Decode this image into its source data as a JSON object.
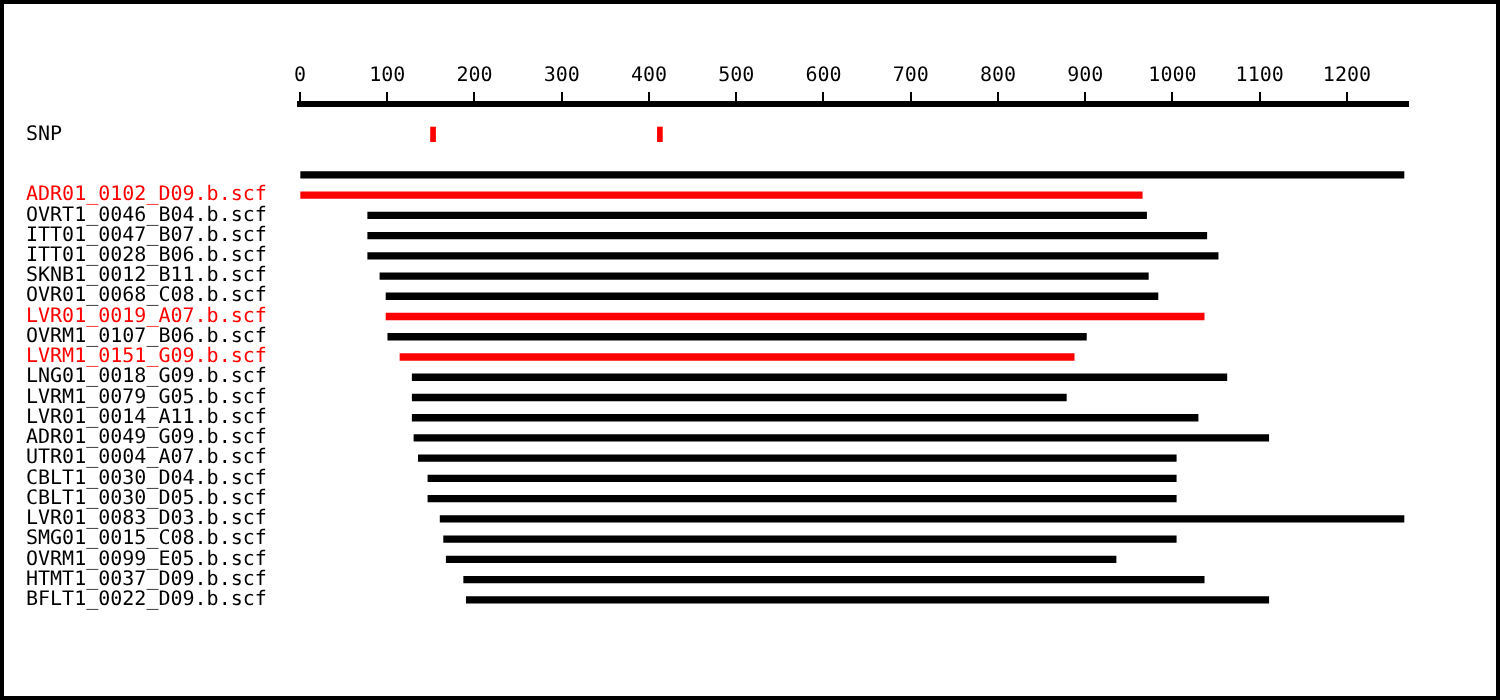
{
  "chart_data": {
    "type": "bar",
    "orientation": "horizontal",
    "xlim": [
      0,
      1270
    ],
    "xticks": [
      0,
      100,
      200,
      300,
      400,
      500,
      600,
      700,
      800,
      900,
      1000,
      1100,
      1200
    ],
    "categories": [
      null,
      "SNP",
      null,
      null,
      "ADR01_0102_D09.b.scf",
      "OVRT1_0046_B04.b.scf",
      "ITT01_0047_B07.b.scf",
      "ITT01_0028_B06.b.scf",
      "SKNB1_0012_B11.b.scf",
      "OVR01_0068_C08.b.scf",
      "LVR01_0019_A07.b.scf",
      "OVRM1_0107_B06.b.scf",
      "LVRM1_0151_G09.b.scf",
      "LNG01_0018_G09.b.scf",
      "LVRM1_0079_G05.b.scf",
      "LVR01_0014_A11.b.scf",
      "ADR01_0049_G09.b.scf",
      "UTR01_0004_A07.b.scf",
      "CBLT1_0030_D04.b.scf",
      "CBLT1_0030_D05.b.scf",
      "LVR01_0083_D03.b.scf",
      "SMG01_0015_C08.b.scf",
      "OVRM1_0099_E05.b.scf",
      "HTMT1_0037_D09.b.scf",
      "BFLT1_0022_D09.b.scf"
    ],
    "series": [
      {
        "base": [
          null,
          null,
          null,
          0,
          0,
          78,
          78,
          78,
          92,
          99,
          99,
          101,
          115,
          129,
          129,
          129,
          131,
          136,
          147,
          147,
          161,
          165,
          168,
          188,
          191
        ],
        "values": [
          null,
          null,
          null,
          1265,
          965,
          892,
          961,
          974,
          880,
          884,
          937,
          800,
          772,
          933,
          749,
          900,
          979,
          868,
          857,
          857,
          1104,
          839,
          767,
          848,
          919
        ],
        "colors": [
          "#000000",
          "#000000",
          "#000000",
          "#000000",
          "#ff0000",
          "#000000",
          "#000000",
          "#000000",
          "#000000",
          "#000000",
          "#ff0000",
          "#000000",
          "#ff0000",
          "#000000",
          "#000000",
          "#000000",
          "#000000",
          "#000000",
          "#000000",
          "#000000",
          "#000000",
          "#000000",
          "#000000",
          "#000000",
          "#000000"
        ]
      },
      {
        "color": "#ff0000",
        "base": [
          null,
          150,
          null,
          null,
          null,
          null,
          null,
          null,
          null,
          null,
          null,
          null,
          null,
          null,
          null,
          null,
          null,
          null,
          null,
          null,
          null,
          null,
          null,
          null,
          null
        ],
        "values": [
          null,
          5,
          null,
          null,
          null,
          null,
          null,
          null,
          null,
          null,
          null,
          null,
          null,
          null,
          null,
          null,
          null,
          null,
          null,
          null,
          null,
          null,
          null,
          null,
          null
        ]
      },
      {
        "color": "#ff0000",
        "base": [
          null,
          410,
          null,
          null,
          null,
          null,
          null,
          null,
          null,
          null,
          null,
          null,
          null,
          null,
          null,
          null,
          null,
          null,
          null,
          null,
          null,
          null,
          null,
          null,
          null
        ],
        "values": [
          null,
          5,
          null,
          null,
          null,
          null,
          null,
          null,
          null,
          null,
          null,
          null,
          null,
          null,
          null,
          null,
          null,
          null,
          null,
          null,
          null,
          null,
          null,
          null,
          null
        ]
      }
    ]
  }
}
